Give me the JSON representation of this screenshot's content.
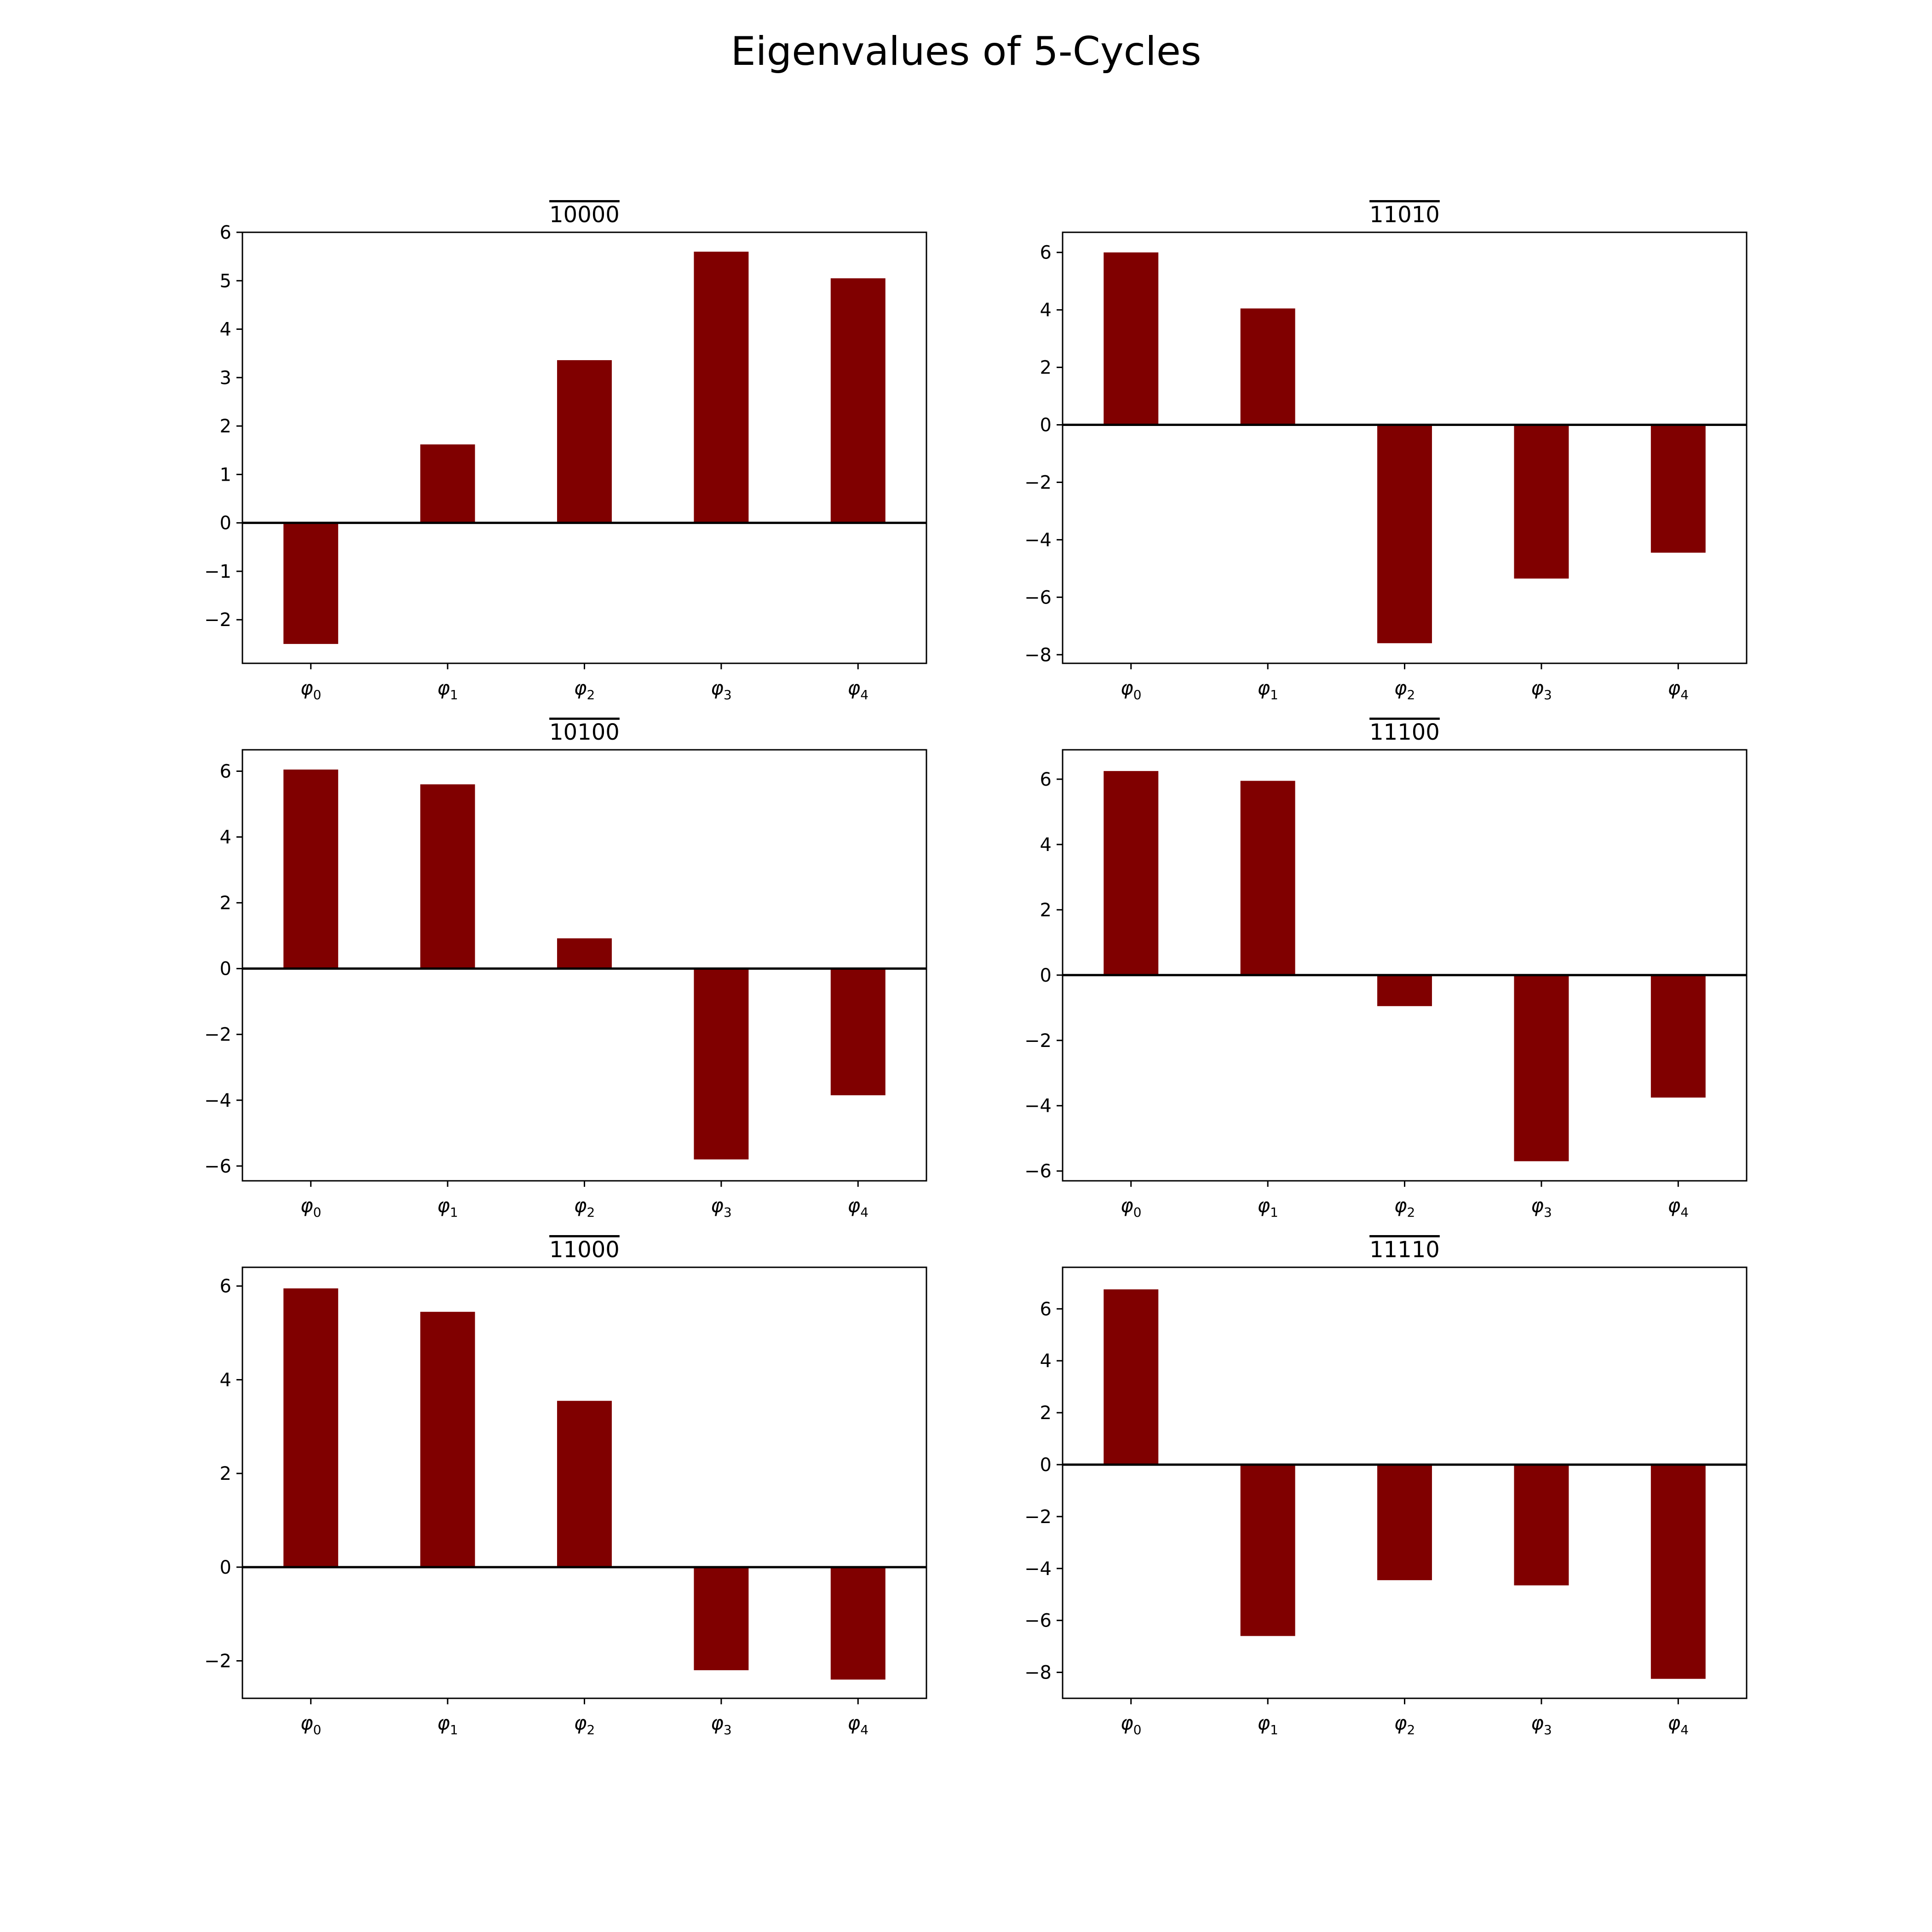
{
  "title": "Eigenvalues of 5-Cycles",
  "bar_color": "#800000",
  "chart_data": [
    {
      "type": "bar",
      "title": "10000",
      "title_overline": true,
      "categories": [
        "φ0",
        "φ1",
        "φ2",
        "φ3",
        "φ4"
      ],
      "values": [
        -2.5,
        1.62,
        3.36,
        5.6,
        5.05
      ],
      "ylim": [
        -2.9,
        6.0
      ],
      "yticks": [
        -2,
        -1,
        0,
        1,
        2,
        3,
        4,
        5,
        6
      ],
      "xlabel": "",
      "ylabel": "",
      "grid": false
    },
    {
      "type": "bar",
      "title": "11010",
      "title_overline": true,
      "categories": [
        "φ0",
        "φ1",
        "φ2",
        "φ3",
        "φ4"
      ],
      "values": [
        6.0,
        4.05,
        -7.6,
        -5.35,
        -4.45
      ],
      "ylim": [
        -8.3,
        6.7
      ],
      "yticks": [
        -8,
        -6,
        -4,
        -2,
        0,
        2,
        4,
        6
      ],
      "xlabel": "",
      "ylabel": "",
      "grid": false
    },
    {
      "type": "bar",
      "title": "10100",
      "title_overline": true,
      "categories": [
        "φ0",
        "φ1",
        "φ2",
        "φ3",
        "φ4"
      ],
      "values": [
        6.05,
        5.6,
        0.92,
        -5.8,
        -3.85
      ],
      "ylim": [
        -6.45,
        6.65
      ],
      "yticks": [
        -6,
        -4,
        -2,
        0,
        2,
        4,
        6
      ],
      "xlabel": "",
      "ylabel": "",
      "grid": false
    },
    {
      "type": "bar",
      "title": "11100",
      "title_overline": true,
      "categories": [
        "φ0",
        "φ1",
        "φ2",
        "φ3",
        "φ4"
      ],
      "values": [
        6.25,
        5.95,
        -0.95,
        -5.7,
        -3.75
      ],
      "ylim": [
        -6.3,
        6.9
      ],
      "yticks": [
        -6,
        -4,
        -2,
        0,
        2,
        4,
        6
      ],
      "xlabel": "",
      "ylabel": "",
      "grid": false
    },
    {
      "type": "bar",
      "title": "11000",
      "title_overline": true,
      "categories": [
        "φ0",
        "φ1",
        "φ2",
        "φ3",
        "φ4"
      ],
      "values": [
        5.95,
        5.45,
        3.55,
        -2.2,
        -2.4
      ],
      "ylim": [
        -2.8,
        6.4
      ],
      "yticks": [
        -2,
        0,
        2,
        4,
        6
      ],
      "xlabel": "",
      "ylabel": "",
      "grid": false
    },
    {
      "type": "bar",
      "title": "11110",
      "title_overline": true,
      "categories": [
        "φ0",
        "φ1",
        "φ2",
        "φ3",
        "φ4"
      ],
      "values": [
        6.75,
        -6.6,
        -4.45,
        -4.65,
        -8.25
      ],
      "ylim": [
        -9.0,
        7.6
      ],
      "yticks": [
        -8,
        -6,
        -4,
        -2,
        0,
        2,
        4,
        6
      ],
      "xlabel": "",
      "ylabel": "",
      "grid": false
    }
  ]
}
